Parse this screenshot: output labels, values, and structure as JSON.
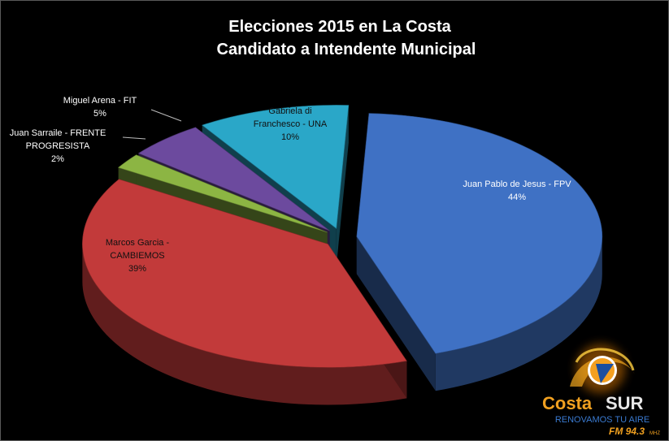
{
  "chart_data": {
    "type": "pie",
    "title_line1": "Elecciones 2015 en La Costa",
    "title_line2": "Candidato a Intendente Municipal",
    "slices": [
      {
        "line1": "Juan Pablo de Jesus - FPV",
        "line2": "",
        "pct": "44%",
        "value": 44,
        "color": "#3f71c4"
      },
      {
        "line1": "Marcos Garcia -",
        "line2": "CAMBIEMOS",
        "pct": "39%",
        "value": 39,
        "color": "#c23a3a"
      },
      {
        "line1": "Juan Sarraile - FRENTE",
        "line2": "PROGRESISTA",
        "pct": "2%",
        "value": 2,
        "color": "#8cb543"
      },
      {
        "line1": "Miguel Arena  - FIT",
        "line2": "",
        "pct": "5%",
        "value": 5,
        "color": "#6c4a9e"
      },
      {
        "line1": "Gabriela di",
        "line2": "Franchesco - UNA",
        "pct": "10%",
        "value": 10,
        "color": "#2aa7c8"
      }
    ],
    "legend": "none"
  },
  "logo": {
    "brand_left": "Costa",
    "brand_right": "SUR",
    "tagline": "RENOVAMOS TU AIRE",
    "frequency": "FM 94.3",
    "unit": "MHZ"
  }
}
